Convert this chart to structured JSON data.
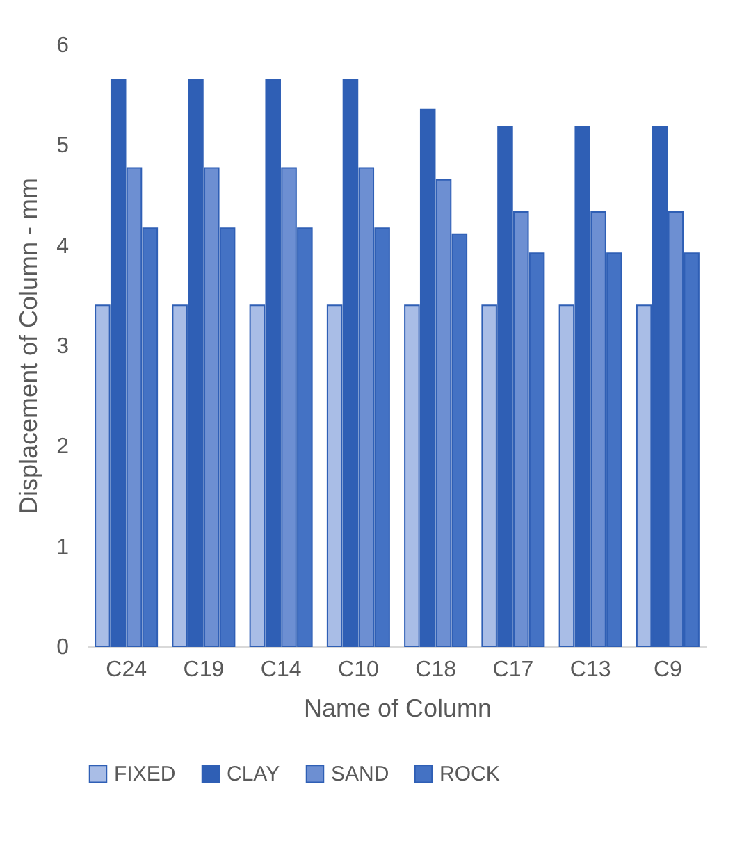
{
  "chart_data": {
    "type": "bar",
    "xlabel": "Name of Column",
    "ylabel": "Displacement of Column - mm",
    "categories": [
      "C24",
      "C19",
      "C14",
      "C10",
      "C18",
      "C17",
      "C13",
      "C9"
    ],
    "series": [
      {
        "name": "FIXED",
        "color": "#a9bde6",
        "values": [
          3.4,
          3.4,
          3.4,
          3.4,
          3.4,
          3.4,
          3.4,
          3.4
        ]
      },
      {
        "name": "CLAY",
        "color": "#2f5fb5",
        "values": [
          5.65,
          5.65,
          5.65,
          5.65,
          5.35,
          5.18,
          5.18,
          5.18
        ]
      },
      {
        "name": "SAND",
        "color": "#6d8fd2",
        "values": [
          4.77,
          4.77,
          4.77,
          4.77,
          4.65,
          4.33,
          4.33,
          4.33
        ]
      },
      {
        "name": "ROCK",
        "color": "#4472c4",
        "values": [
          4.17,
          4.17,
          4.17,
          4.17,
          4.11,
          3.92,
          3.92,
          3.92
        ]
      }
    ],
    "ylim": [
      0,
      6
    ],
    "yticks": [
      0,
      1,
      2,
      3,
      4,
      5,
      6
    ],
    "grid": false,
    "legend": "bottom"
  }
}
